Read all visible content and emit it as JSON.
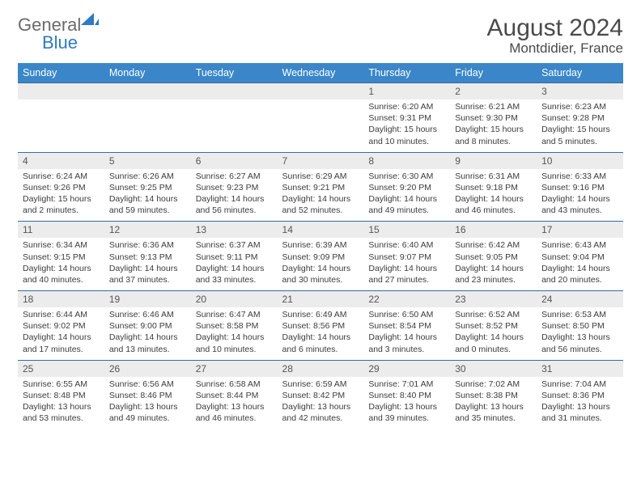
{
  "logo": {
    "general": "General",
    "blue": "Blue"
  },
  "title": "August 2024",
  "location": "Montdidier, France",
  "colors": {
    "header_bg": "#3a86c8",
    "header_text": "#ffffff",
    "row_border": "#2f6fa8",
    "daynum_bg": "#ececec",
    "text": "#3c3c3c",
    "logo_gray": "#6a6a6a",
    "logo_blue": "#2f7ac0"
  },
  "dayNames": [
    "Sunday",
    "Monday",
    "Tuesday",
    "Wednesday",
    "Thursday",
    "Friday",
    "Saturday"
  ],
  "weeks": [
    [
      {
        "n": "",
        "sunrise": "",
        "sunset": "",
        "daylight": ""
      },
      {
        "n": "",
        "sunrise": "",
        "sunset": "",
        "daylight": ""
      },
      {
        "n": "",
        "sunrise": "",
        "sunset": "",
        "daylight": ""
      },
      {
        "n": "",
        "sunrise": "",
        "sunset": "",
        "daylight": ""
      },
      {
        "n": "1",
        "sunrise": "Sunrise: 6:20 AM",
        "sunset": "Sunset: 9:31 PM",
        "daylight": "Daylight: 15 hours and 10 minutes."
      },
      {
        "n": "2",
        "sunrise": "Sunrise: 6:21 AM",
        "sunset": "Sunset: 9:30 PM",
        "daylight": "Daylight: 15 hours and 8 minutes."
      },
      {
        "n": "3",
        "sunrise": "Sunrise: 6:23 AM",
        "sunset": "Sunset: 9:28 PM",
        "daylight": "Daylight: 15 hours and 5 minutes."
      }
    ],
    [
      {
        "n": "4",
        "sunrise": "Sunrise: 6:24 AM",
        "sunset": "Sunset: 9:26 PM",
        "daylight": "Daylight: 15 hours and 2 minutes."
      },
      {
        "n": "5",
        "sunrise": "Sunrise: 6:26 AM",
        "sunset": "Sunset: 9:25 PM",
        "daylight": "Daylight: 14 hours and 59 minutes."
      },
      {
        "n": "6",
        "sunrise": "Sunrise: 6:27 AM",
        "sunset": "Sunset: 9:23 PM",
        "daylight": "Daylight: 14 hours and 56 minutes."
      },
      {
        "n": "7",
        "sunrise": "Sunrise: 6:29 AM",
        "sunset": "Sunset: 9:21 PM",
        "daylight": "Daylight: 14 hours and 52 minutes."
      },
      {
        "n": "8",
        "sunrise": "Sunrise: 6:30 AM",
        "sunset": "Sunset: 9:20 PM",
        "daylight": "Daylight: 14 hours and 49 minutes."
      },
      {
        "n": "9",
        "sunrise": "Sunrise: 6:31 AM",
        "sunset": "Sunset: 9:18 PM",
        "daylight": "Daylight: 14 hours and 46 minutes."
      },
      {
        "n": "10",
        "sunrise": "Sunrise: 6:33 AM",
        "sunset": "Sunset: 9:16 PM",
        "daylight": "Daylight: 14 hours and 43 minutes."
      }
    ],
    [
      {
        "n": "11",
        "sunrise": "Sunrise: 6:34 AM",
        "sunset": "Sunset: 9:15 PM",
        "daylight": "Daylight: 14 hours and 40 minutes."
      },
      {
        "n": "12",
        "sunrise": "Sunrise: 6:36 AM",
        "sunset": "Sunset: 9:13 PM",
        "daylight": "Daylight: 14 hours and 37 minutes."
      },
      {
        "n": "13",
        "sunrise": "Sunrise: 6:37 AM",
        "sunset": "Sunset: 9:11 PM",
        "daylight": "Daylight: 14 hours and 33 minutes."
      },
      {
        "n": "14",
        "sunrise": "Sunrise: 6:39 AM",
        "sunset": "Sunset: 9:09 PM",
        "daylight": "Daylight: 14 hours and 30 minutes."
      },
      {
        "n": "15",
        "sunrise": "Sunrise: 6:40 AM",
        "sunset": "Sunset: 9:07 PM",
        "daylight": "Daylight: 14 hours and 27 minutes."
      },
      {
        "n": "16",
        "sunrise": "Sunrise: 6:42 AM",
        "sunset": "Sunset: 9:05 PM",
        "daylight": "Daylight: 14 hours and 23 minutes."
      },
      {
        "n": "17",
        "sunrise": "Sunrise: 6:43 AM",
        "sunset": "Sunset: 9:04 PM",
        "daylight": "Daylight: 14 hours and 20 minutes."
      }
    ],
    [
      {
        "n": "18",
        "sunrise": "Sunrise: 6:44 AM",
        "sunset": "Sunset: 9:02 PM",
        "daylight": "Daylight: 14 hours and 17 minutes."
      },
      {
        "n": "19",
        "sunrise": "Sunrise: 6:46 AM",
        "sunset": "Sunset: 9:00 PM",
        "daylight": "Daylight: 14 hours and 13 minutes."
      },
      {
        "n": "20",
        "sunrise": "Sunrise: 6:47 AM",
        "sunset": "Sunset: 8:58 PM",
        "daylight": "Daylight: 14 hours and 10 minutes."
      },
      {
        "n": "21",
        "sunrise": "Sunrise: 6:49 AM",
        "sunset": "Sunset: 8:56 PM",
        "daylight": "Daylight: 14 hours and 6 minutes."
      },
      {
        "n": "22",
        "sunrise": "Sunrise: 6:50 AM",
        "sunset": "Sunset: 8:54 PM",
        "daylight": "Daylight: 14 hours and 3 minutes."
      },
      {
        "n": "23",
        "sunrise": "Sunrise: 6:52 AM",
        "sunset": "Sunset: 8:52 PM",
        "daylight": "Daylight: 14 hours and 0 minutes."
      },
      {
        "n": "24",
        "sunrise": "Sunrise: 6:53 AM",
        "sunset": "Sunset: 8:50 PM",
        "daylight": "Daylight: 13 hours and 56 minutes."
      }
    ],
    [
      {
        "n": "25",
        "sunrise": "Sunrise: 6:55 AM",
        "sunset": "Sunset: 8:48 PM",
        "daylight": "Daylight: 13 hours and 53 minutes."
      },
      {
        "n": "26",
        "sunrise": "Sunrise: 6:56 AM",
        "sunset": "Sunset: 8:46 PM",
        "daylight": "Daylight: 13 hours and 49 minutes."
      },
      {
        "n": "27",
        "sunrise": "Sunrise: 6:58 AM",
        "sunset": "Sunset: 8:44 PM",
        "daylight": "Daylight: 13 hours and 46 minutes."
      },
      {
        "n": "28",
        "sunrise": "Sunrise: 6:59 AM",
        "sunset": "Sunset: 8:42 PM",
        "daylight": "Daylight: 13 hours and 42 minutes."
      },
      {
        "n": "29",
        "sunrise": "Sunrise: 7:01 AM",
        "sunset": "Sunset: 8:40 PM",
        "daylight": "Daylight: 13 hours and 39 minutes."
      },
      {
        "n": "30",
        "sunrise": "Sunrise: 7:02 AM",
        "sunset": "Sunset: 8:38 PM",
        "daylight": "Daylight: 13 hours and 35 minutes."
      },
      {
        "n": "31",
        "sunrise": "Sunrise: 7:04 AM",
        "sunset": "Sunset: 8:36 PM",
        "daylight": "Daylight: 13 hours and 31 minutes."
      }
    ]
  ]
}
